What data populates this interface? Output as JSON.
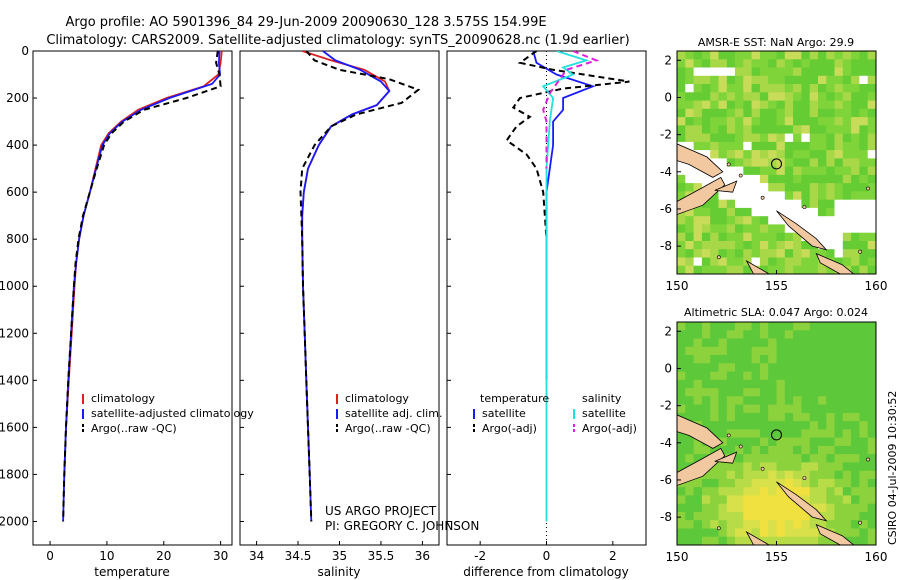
{
  "title_line1": "Argo profile: AO 5901396_84 29-Jun-2009 20090630_128 3.575S 154.99E",
  "title_line2": "Climatology: CARS2009. Satellite-adjusted climatology: synTS_20090628.nc (1.9d earlier)",
  "footer_credit": "CSIRO 04-Jul-2009 10:30:52",
  "project_note": {
    "line1": "US ARGO PROJECT",
    "line2": "PI: GREGORY C. JOHNSON"
  },
  "colors": {
    "clim": "#e02020",
    "sat": "#1a1aff",
    "argo": "#000000",
    "sal_sat": "#22e0e0",
    "sal_argo": "#e020e0",
    "sea_green": "#5cc83a",
    "land": "#f2c8a0",
    "missing": "#ffffff"
  },
  "chart_data": [
    {
      "type": "line",
      "name": "temperature",
      "xlabel": "temperature",
      "ylabel": "",
      "xlim": [
        -3,
        32
      ],
      "ylim": [
        0,
        2100
      ],
      "xticks": [
        0,
        10,
        20,
        30
      ],
      "yticks": [
        0,
        200,
        400,
        600,
        800,
        1000,
        1200,
        1400,
        1600,
        1800,
        2000
      ],
      "legend": [
        "climatology",
        "satellite-adjusted climatology",
        "Argo(..raw -QC)"
      ],
      "series": [
        {
          "name": "climatology",
          "style": "solid",
          "color": "#e02020",
          "points": [
            [
              30.2,
              0
            ],
            [
              30.0,
              50
            ],
            [
              29.6,
              100
            ],
            [
              27.0,
              150
            ],
            [
              20.5,
              200
            ],
            [
              15.5,
              250
            ],
            [
              12.5,
              300
            ],
            [
              10.3,
              350
            ],
            [
              9.0,
              400
            ],
            [
              8.0,
              500
            ],
            [
              7.0,
              600
            ],
            [
              5.9,
              700
            ],
            [
              5.1,
              800
            ],
            [
              4.6,
              900
            ],
            [
              4.3,
              1000
            ],
            [
              3.8,
              1200
            ],
            [
              3.3,
              1400
            ],
            [
              2.8,
              1600
            ],
            [
              2.5,
              1800
            ]
          ]
        },
        {
          "name": "satellite-adjusted climatology",
          "style": "solid",
          "color": "#1a1aff",
          "points": [
            [
              29.8,
              0
            ],
            [
              29.7,
              50
            ],
            [
              29.9,
              100
            ],
            [
              28.5,
              140
            ],
            [
              21.0,
              200
            ],
            [
              16.0,
              250
            ],
            [
              12.7,
              300
            ],
            [
              10.5,
              350
            ],
            [
              9.2,
              400
            ],
            [
              8.1,
              500
            ],
            [
              7.0,
              600
            ],
            [
              5.9,
              700
            ],
            [
              5.1,
              800
            ],
            [
              4.6,
              900
            ],
            [
              4.2,
              1000
            ],
            [
              3.7,
              1200
            ],
            [
              3.2,
              1400
            ],
            [
              2.8,
              1600
            ],
            [
              2.5,
              1800
            ],
            [
              2.3,
              2000
            ]
          ]
        },
        {
          "name": "Argo(..raw -QC)",
          "style": "dashed",
          "color": "#000000",
          "points": [
            [
              29.5,
              0
            ],
            [
              29.2,
              50
            ],
            [
              29.8,
              100
            ],
            [
              30.0,
              150
            ],
            [
              24.0,
              200
            ],
            [
              16.5,
              250
            ],
            [
              13.0,
              300
            ],
            [
              10.8,
              350
            ],
            [
              9.5,
              400
            ],
            [
              8.2,
              500
            ],
            [
              7.0,
              600
            ],
            [
              5.8,
              700
            ],
            [
              5.0,
              800
            ],
            [
              4.5,
              900
            ],
            [
              4.2,
              1000
            ],
            [
              3.7,
              1200
            ],
            [
              3.2,
              1400
            ],
            [
              2.8,
              1600
            ],
            [
              2.5,
              1800
            ],
            [
              2.3,
              2000
            ]
          ]
        }
      ]
    },
    {
      "type": "line",
      "name": "salinity",
      "xlabel": "salinity",
      "ylabel": "",
      "xlim": [
        33.8,
        36.2
      ],
      "ylim": [
        0,
        2100
      ],
      "xticks": [
        34,
        34.5,
        35,
        35.5,
        36
      ],
      "yticks": [],
      "legend": [
        "climatology",
        "satellite adj. clim.",
        "Argo(..raw -QC)"
      ],
      "series": [
        {
          "name": "climatology",
          "style": "solid",
          "color": "#e02020",
          "points": [
            [
              34.55,
              0
            ],
            [
              34.9,
              40
            ],
            [
              35.3,
              80
            ],
            [
              35.55,
              130
            ],
            [
              35.6,
              170
            ],
            [
              35.45,
              230
            ],
            [
              35.15,
              270
            ],
            [
              34.9,
              320
            ],
            [
              34.75,
              400
            ],
            [
              34.62,
              500
            ],
            [
              34.57,
              600
            ],
            [
              34.55,
              700
            ],
            [
              34.55,
              800
            ],
            [
              34.56,
              1000
            ],
            [
              34.58,
              1200
            ],
            [
              34.6,
              1400
            ],
            [
              34.62,
              1600
            ],
            [
              34.64,
              1800
            ]
          ]
        },
        {
          "name": "satellite adj. clim.",
          "style": "solid",
          "color": "#1a1aff",
          "points": [
            [
              34.8,
              0
            ],
            [
              34.95,
              40
            ],
            [
              35.25,
              80
            ],
            [
              35.5,
              130
            ],
            [
              35.6,
              170
            ],
            [
              35.45,
              230
            ],
            [
              35.15,
              270
            ],
            [
              34.9,
              320
            ],
            [
              34.75,
              400
            ],
            [
              34.62,
              500
            ],
            [
              34.57,
              600
            ],
            [
              34.55,
              700
            ],
            [
              34.55,
              800
            ],
            [
              34.56,
              1000
            ],
            [
              34.58,
              1200
            ],
            [
              34.6,
              1400
            ],
            [
              34.62,
              1600
            ],
            [
              34.64,
              1800
            ],
            [
              34.66,
              2000
            ]
          ]
        },
        {
          "name": "Argo(..raw -QC)",
          "style": "dashed",
          "color": "#000000",
          "points": [
            [
              34.6,
              0
            ],
            [
              34.7,
              40
            ],
            [
              35.0,
              80
            ],
            [
              35.6,
              120
            ],
            [
              35.95,
              165
            ],
            [
              35.75,
              220
            ],
            [
              35.2,
              270
            ],
            [
              34.9,
              320
            ],
            [
              34.7,
              400
            ],
            [
              34.55,
              500
            ],
            [
              34.53,
              600
            ],
            [
              34.54,
              700
            ],
            [
              34.55,
              800
            ],
            [
              34.56,
              1000
            ],
            [
              34.58,
              1200
            ],
            [
              34.6,
              1400
            ],
            [
              34.62,
              1600
            ],
            [
              34.64,
              1800
            ],
            [
              34.66,
              2000
            ]
          ]
        }
      ]
    },
    {
      "type": "line",
      "name": "difference",
      "xlabel": "difference from climatology",
      "ylabel": "",
      "xlim": [
        -3,
        3
      ],
      "ylim": [
        0,
        2100
      ],
      "xticks": [
        -2,
        0,
        2
      ],
      "yticks": [],
      "legend_temperature_title": "temperature",
      "legend_salinity_title": "salinity",
      "legend": [
        "satellite",
        "Argo(-adj)",
        "satellite",
        "Argo(-adj)"
      ],
      "series": [
        {
          "name": "temperature satellite",
          "style": "solid",
          "color": "#1a1aff",
          "points": [
            [
              -0.4,
              0
            ],
            [
              -0.3,
              50
            ],
            [
              0.3,
              100
            ],
            [
              1.4,
              150
            ],
            [
              0.5,
              200
            ],
            [
              0.5,
              250
            ],
            [
              0.2,
              300
            ],
            [
              0.2,
              350
            ],
            [
              0.2,
              400
            ],
            [
              0.1,
              500
            ],
            [
              0,
              600
            ],
            [
              0,
              800
            ],
            [
              0,
              1000
            ],
            [
              0,
              1400
            ]
          ]
        },
        {
          "name": "temperature Argo(-adj)",
          "style": "dashed",
          "color": "#000000",
          "points": [
            [
              -0.3,
              0
            ],
            [
              -0.8,
              50
            ],
            [
              0.2,
              80
            ],
            [
              2.5,
              130
            ],
            [
              0.5,
              160
            ],
            [
              -0.8,
              200
            ],
            [
              -1.0,
              240
            ],
            [
              -0.5,
              280
            ],
            [
              -0.9,
              320
            ],
            [
              -1.2,
              380
            ],
            [
              -0.6,
              440
            ],
            [
              -0.3,
              500
            ],
            [
              -0.1,
              600
            ],
            [
              0,
              800
            ]
          ]
        },
        {
          "name": "salinity satellite",
          "style": "solid",
          "color": "#22e0e0",
          "points": [
            [
              0.3,
              0
            ],
            [
              1.2,
              40
            ],
            [
              0.5,
              70
            ],
            [
              0.8,
              100
            ],
            [
              -0.1,
              150
            ],
            [
              0.2,
              200
            ],
            [
              0.1,
              300
            ],
            [
              0,
              500
            ],
            [
              0,
              1000
            ],
            [
              0,
              1500
            ],
            [
              0,
              2000
            ]
          ]
        },
        {
          "name": "salinity Argo(-adj)",
          "style": "dashed",
          "color": "#e020e0",
          "points": [
            [
              0.8,
              0
            ],
            [
              1.5,
              40
            ],
            [
              0.6,
              80
            ],
            [
              0.4,
              120
            ],
            [
              0.1,
              180
            ],
            [
              -0.1,
              250
            ],
            [
              0,
              300
            ],
            [
              0,
              500
            ]
          ]
        }
      ]
    },
    {
      "type": "heatmap",
      "name": "sst_map",
      "title": "AMSR-E SST: NaN Argo: 29.9",
      "xlim": [
        150,
        160
      ],
      "ylim": [
        -9.5,
        2.5
      ],
      "xticks": [
        150,
        155,
        160
      ],
      "yticks": [
        -8,
        -6,
        -4,
        -2,
        0,
        2
      ],
      "marker": {
        "lon": 155.0,
        "lat": -3.575
      }
    },
    {
      "type": "heatmap",
      "name": "sla_map",
      "title": "Altimetric SLA: 0.047 Argo: 0.024",
      "xlim": [
        150,
        160
      ],
      "ylim": [
        -9.5,
        2.5
      ],
      "xticks": [
        150,
        155,
        160
      ],
      "yticks": [
        -8,
        -6,
        -4,
        -2,
        0,
        2
      ],
      "marker": {
        "lon": 155.0,
        "lat": -3.575
      }
    }
  ]
}
